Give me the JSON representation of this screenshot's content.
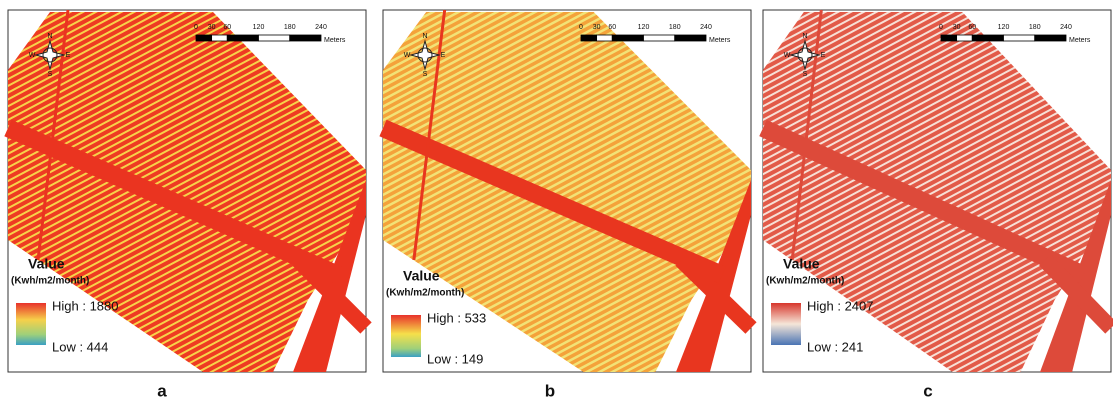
{
  "panels": [
    {
      "label": "a",
      "legend": {
        "title": "Value",
        "unit": "(Kwh/m2/month)",
        "high": "High : 1880",
        "low": "Low : 444"
      }
    },
    {
      "label": "b",
      "legend": {
        "title": "Value",
        "unit": "(Kwh/m2/month)",
        "high": "High : 533",
        "low": "Low : 149"
      }
    },
    {
      "label": "c",
      "legend": {
        "title": "Value",
        "unit": "(Kwh/m2/month)",
        "high": "High : 2407",
        "low": "Low : 241"
      }
    }
  ],
  "scale_bar": {
    "ticks": [
      "0",
      "30",
      "60",
      "120",
      "180",
      "240"
    ],
    "unit": "Meters"
  },
  "compass": {
    "n": "N",
    "s": "S",
    "e": "E",
    "w": "W"
  }
}
